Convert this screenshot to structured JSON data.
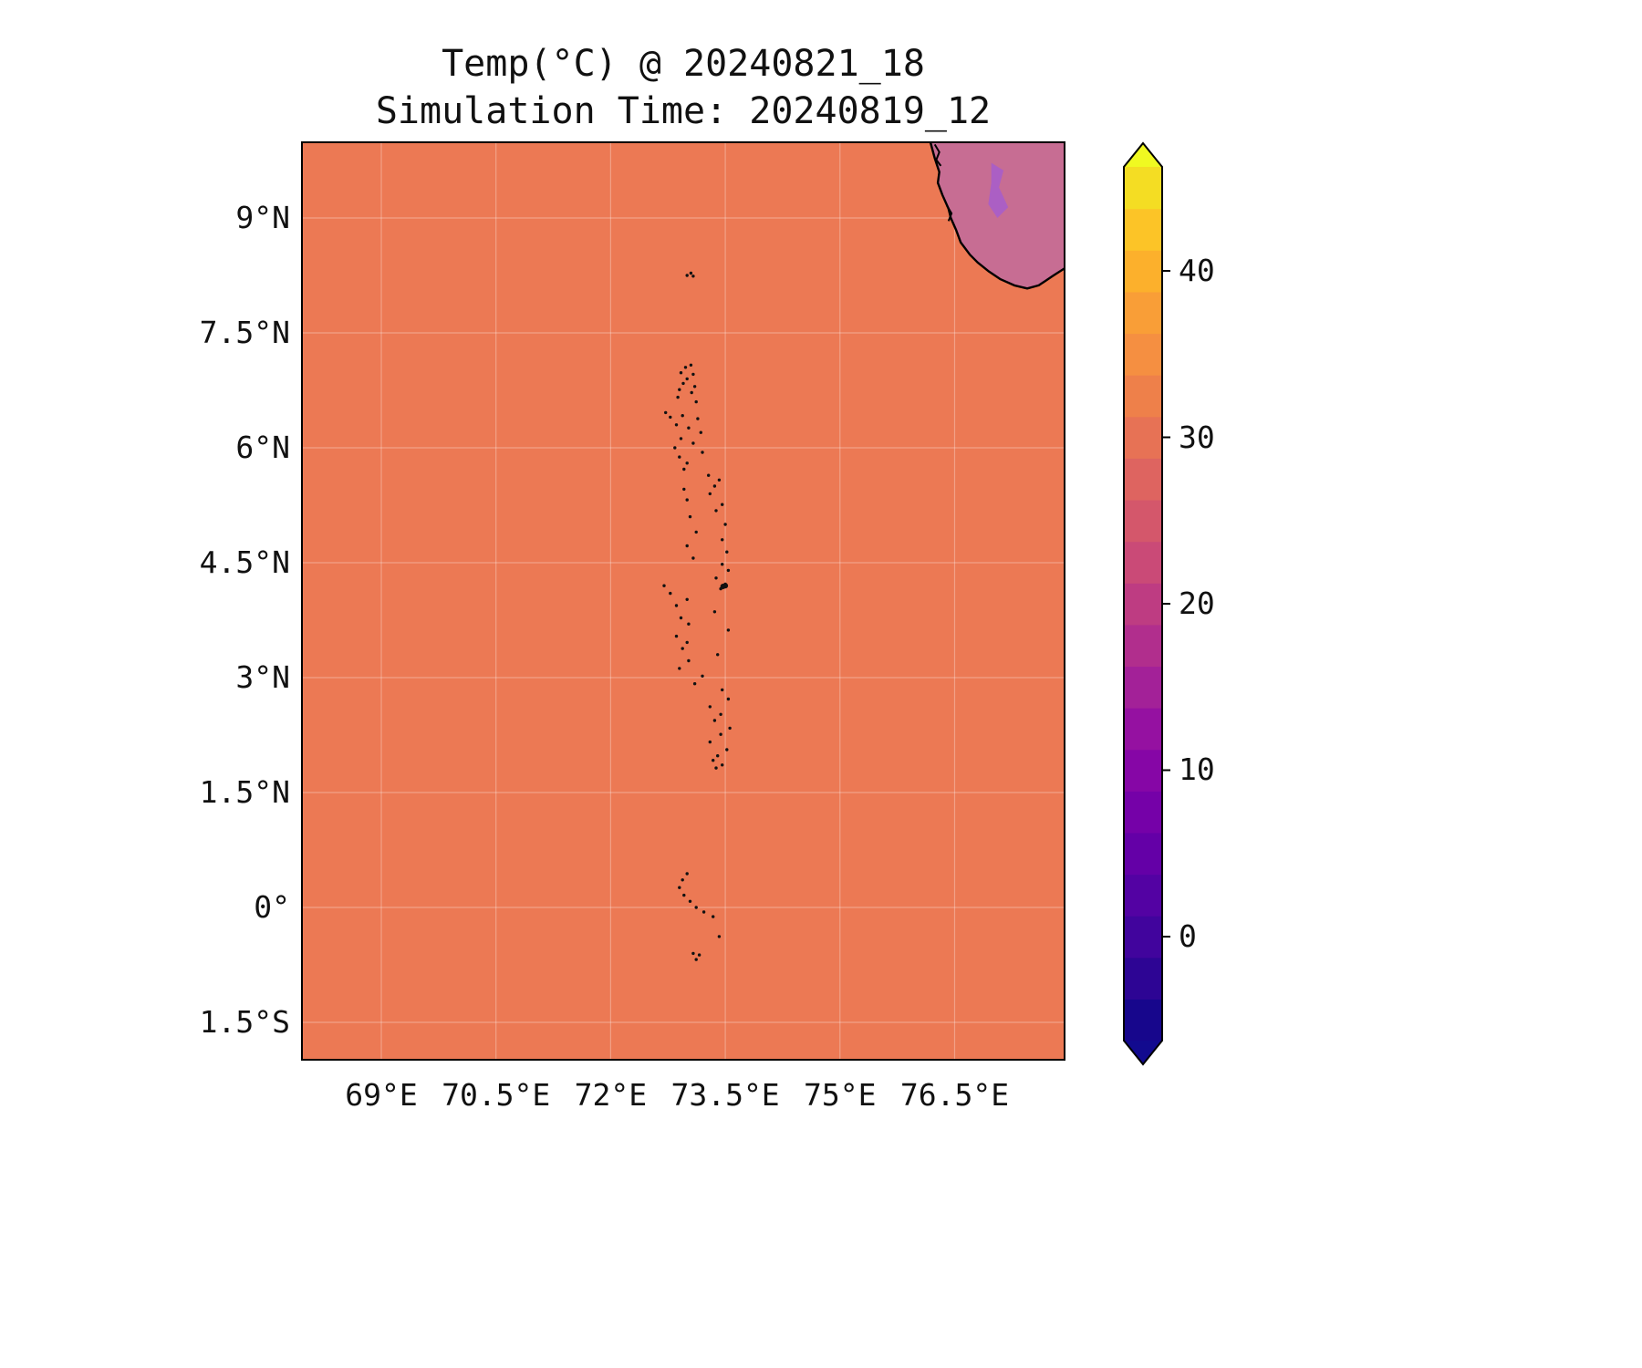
{
  "chart_data": {
    "type": "heatmap",
    "title": "Temp(°C) @ 20240821_18",
    "subtitle": "Simulation Time: 20240819_12",
    "xlabel": "",
    "ylabel": "",
    "xlim": [
      67.95,
      77.95
    ],
    "ylim": [
      -2.0,
      10.0
    ],
    "grid": true,
    "x_ticks": [
      {
        "value": 69,
        "label": "69°E"
      },
      {
        "value": 70.5,
        "label": "70.5°E"
      },
      {
        "value": 72,
        "label": "72°E"
      },
      {
        "value": 73.5,
        "label": "73.5°E"
      },
      {
        "value": 75,
        "label": "75°E"
      },
      {
        "value": 76.5,
        "label": "76.5°E"
      }
    ],
    "y_ticks": [
      {
        "value": 9,
        "label": "9°N"
      },
      {
        "value": 7.5,
        "label": "7.5°N"
      },
      {
        "value": 6,
        "label": "6°N"
      },
      {
        "value": 4.5,
        "label": "4.5°N"
      },
      {
        "value": 3,
        "label": "3°N"
      },
      {
        "value": 1.5,
        "label": "1.5°N"
      },
      {
        "value": 0,
        "label": "0°"
      },
      {
        "value": -1.5,
        "label": "1.5°S"
      }
    ],
    "regions": [
      {
        "name": "ocean",
        "approx_temp_c": 27.5,
        "fill": "#ec7954"
      },
      {
        "name": "india-land",
        "approx_temp_c": 22,
        "fill": "#c76d93"
      },
      {
        "name": "india-highland-patch",
        "approx_temp_c": 8,
        "fill": "#ab5fc4"
      }
    ],
    "sea_fill": "#ec7954",
    "land_fill": "#c76d93",
    "highland_fill": "#ab5fc4",
    "coastline": [
      [
        76.18,
        10.0
      ],
      [
        76.24,
        9.78
      ],
      [
        76.3,
        9.6
      ],
      [
        76.28,
        9.46
      ],
      [
        76.34,
        9.3
      ],
      [
        76.42,
        9.12
      ],
      [
        76.45,
        9.0
      ],
      [
        76.52,
        8.84
      ],
      [
        76.58,
        8.68
      ],
      [
        76.7,
        8.52
      ],
      [
        76.8,
        8.42
      ],
      [
        76.95,
        8.3
      ],
      [
        77.1,
        8.2
      ],
      [
        77.28,
        8.12
      ],
      [
        77.45,
        8.08
      ],
      [
        77.6,
        8.12
      ],
      [
        77.78,
        8.24
      ],
      [
        77.95,
        8.35
      ]
    ],
    "highland_patch": [
      [
        76.98,
        9.72
      ],
      [
        77.14,
        9.62
      ],
      [
        77.08,
        9.4
      ],
      [
        77.2,
        9.14
      ],
      [
        77.06,
        9.0
      ],
      [
        76.94,
        9.18
      ],
      [
        76.98,
        9.46
      ]
    ],
    "coast_detail": [
      [
        [
          76.24,
          9.96
        ],
        [
          76.3,
          9.86
        ],
        [
          76.26,
          9.76
        ],
        [
          76.32,
          9.68
        ]
      ],
      [
        [
          76.4,
          9.16
        ],
        [
          76.46,
          9.06
        ],
        [
          76.42,
          8.96
        ]
      ]
    ],
    "islands": [
      [
        73.05,
        8.28
      ],
      [
        73.0,
        8.25
      ],
      [
        73.08,
        8.24
      ],
      [
        73.05,
        7.08
      ],
      [
        72.98,
        7.05
      ],
      [
        72.92,
        6.98
      ],
      [
        73.08,
        6.96
      ],
      [
        73.0,
        6.9
      ],
      [
        72.95,
        6.84
      ],
      [
        73.1,
        6.8
      ],
      [
        72.9,
        6.76
      ],
      [
        73.06,
        6.72
      ],
      [
        72.88,
        6.66
      ],
      [
        73.12,
        6.6
      ],
      [
        72.72,
        6.46
      ],
      [
        72.78,
        6.4
      ],
      [
        72.94,
        6.42
      ],
      [
        73.14,
        6.38
      ],
      [
        72.86,
        6.3
      ],
      [
        73.02,
        6.26
      ],
      [
        73.18,
        6.2
      ],
      [
        72.92,
        6.12
      ],
      [
        73.08,
        6.06
      ],
      [
        72.84,
        6.0
      ],
      [
        73.2,
        5.94
      ],
      [
        72.9,
        5.88
      ],
      [
        73.0,
        5.8
      ],
      [
        72.96,
        5.72
      ],
      [
        73.28,
        5.64
      ],
      [
        73.42,
        5.58
      ],
      [
        73.36,
        5.5
      ],
      [
        72.96,
        5.46
      ],
      [
        73.3,
        5.4
      ],
      [
        73.0,
        5.32
      ],
      [
        73.46,
        5.26
      ],
      [
        73.38,
        5.18
      ],
      [
        73.04,
        5.1
      ],
      [
        73.5,
        5.0
      ],
      [
        73.12,
        4.9
      ],
      [
        73.46,
        4.8
      ],
      [
        73.0,
        4.72
      ],
      [
        73.52,
        4.64
      ],
      [
        73.08,
        4.56
      ],
      [
        73.46,
        4.48
      ],
      [
        73.54,
        4.4
      ],
      [
        73.38,
        4.3
      ],
      [
        73.5,
        4.22
      ],
      [
        73.44,
        4.16
      ],
      [
        72.7,
        4.2
      ],
      [
        72.78,
        4.1
      ],
      [
        73.0,
        4.02
      ],
      [
        72.86,
        3.94
      ],
      [
        73.36,
        3.86
      ],
      [
        72.92,
        3.78
      ],
      [
        73.02,
        3.7
      ],
      [
        73.54,
        3.62
      ],
      [
        72.86,
        3.54
      ],
      [
        73.0,
        3.46
      ],
      [
        72.94,
        3.38
      ],
      [
        73.4,
        3.3
      ],
      [
        73.02,
        3.22
      ],
      [
        72.9,
        3.12
      ],
      [
        73.2,
        3.02
      ],
      [
        73.1,
        2.92
      ],
      [
        73.46,
        2.84
      ],
      [
        73.54,
        2.72
      ],
      [
        73.3,
        2.62
      ],
      [
        73.44,
        2.52
      ],
      [
        73.36,
        2.44
      ],
      [
        73.56,
        2.34
      ],
      [
        73.44,
        2.26
      ],
      [
        73.3,
        2.16
      ],
      [
        73.52,
        2.06
      ],
      [
        73.4,
        1.98
      ],
      [
        73.34,
        1.92
      ],
      [
        73.46,
        1.86
      ],
      [
        73.38,
        1.82
      ],
      [
        73.0,
        0.44
      ],
      [
        72.94,
        0.36
      ],
      [
        72.9,
        0.26
      ],
      [
        72.96,
        0.16
      ],
      [
        73.04,
        0.08
      ],
      [
        73.12,
        0.0
      ],
      [
        73.22,
        -0.06
      ],
      [
        73.34,
        -0.12
      ],
      [
        73.42,
        -0.38
      ],
      [
        73.08,
        -0.6
      ],
      [
        73.16,
        -0.62
      ],
      [
        73.12,
        -0.68
      ]
    ],
    "island_emphasis": [
      [
        73.47,
        4.19
      ],
      [
        73.5,
        4.2
      ]
    ],
    "colorbar": {
      "vmin": -6.25,
      "vmax": 46.25,
      "ticks": [
        {
          "value": 0,
          "label": "0"
        },
        {
          "value": 10,
          "label": "10"
        },
        {
          "value": 20,
          "label": "20"
        },
        {
          "value": 30,
          "label": "30"
        },
        {
          "value": 40,
          "label": "40"
        }
      ],
      "bands": [
        "#17068c",
        "#2d0594",
        "#41049d",
        "#5302a3",
        "#6400a7",
        "#7501a8",
        "#8606a6",
        "#9511a1",
        "#a32198",
        "#b12e8d",
        "#be3c82",
        "#ca4a77",
        "#d4576b",
        "#de6460",
        "#e77255",
        "#ee804a",
        "#f58f41",
        "#f99e37",
        "#fcb02c",
        "#fcc427",
        "#f4dd23"
      ],
      "extend_under": "#120a8f",
      "extend_over": "#f0f921"
    }
  }
}
